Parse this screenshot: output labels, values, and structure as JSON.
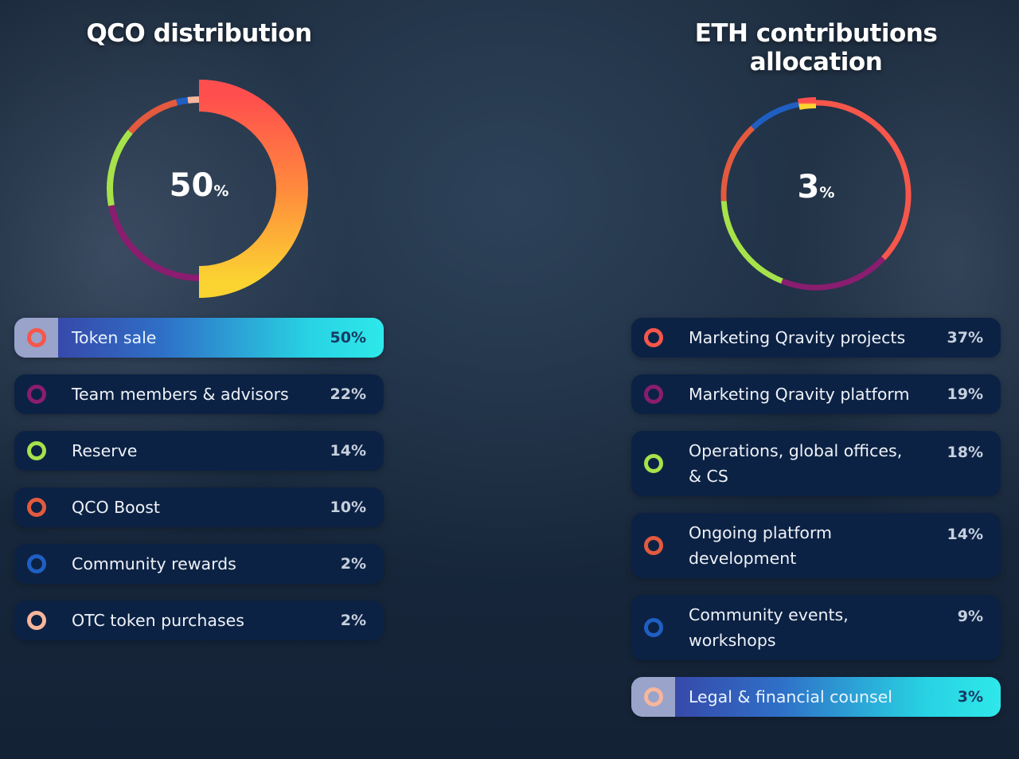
{
  "chart_data": [
    {
      "type": "pie",
      "title": "QCO distribution",
      "center_value": "50",
      "center_unit": "%",
      "categories": [
        "Token sale",
        "Team members & advisors",
        "Reserve",
        "QCO Boost",
        "Community rewards",
        "OTC token purchases"
      ],
      "values": [
        50,
        22,
        14,
        10,
        2,
        2
      ],
      "value_labels": [
        "50%",
        "22%",
        "14%",
        "10%",
        "2%",
        "2%"
      ],
      "colors": [
        "#f7564a",
        "#8a1d6f",
        "#a6e24a",
        "#e35a3e",
        "#1f5fc4",
        "#f7b69c"
      ],
      "active_index": 0
    },
    {
      "type": "pie",
      "title": "ETH contributions allocation",
      "center_value": "3",
      "center_unit": "%",
      "categories": [
        "Marketing Qravity projects",
        "Marketing Qravity platform",
        "Operations, global offices, & CS",
        "Ongoing platform development",
        "Community events, workshops",
        "Legal & financial counsel"
      ],
      "values": [
        37,
        19,
        18,
        14,
        9,
        3
      ],
      "value_labels": [
        "37%",
        "19%",
        "18%",
        "14%",
        "9%",
        "3%"
      ],
      "colors": [
        "#f7564a",
        "#8a1d6f",
        "#a6e24a",
        "#e35a3e",
        "#1f5fc4",
        "#f7b69c"
      ],
      "active_index": 5
    }
  ],
  "accent_gradient": [
    "#3a3a9e",
    "#2ee8ea"
  ],
  "row_background": "#0c2244"
}
